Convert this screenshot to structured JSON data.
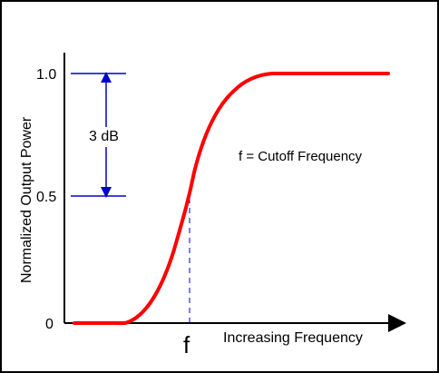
{
  "diagram": {
    "y_axis_label": "Normalized Output Power",
    "x_axis_label": "Increasing Frequency",
    "y_ticks": [
      "1.0",
      "0.5",
      "0"
    ],
    "dimension_label": "3 dB",
    "cutoff_marker": "f",
    "legend_note": "f = Cutoff Frequency"
  },
  "colors": {
    "curve": "#ff0000",
    "guides": "#0000cc",
    "axes": "#000000",
    "border": "#000000"
  }
}
